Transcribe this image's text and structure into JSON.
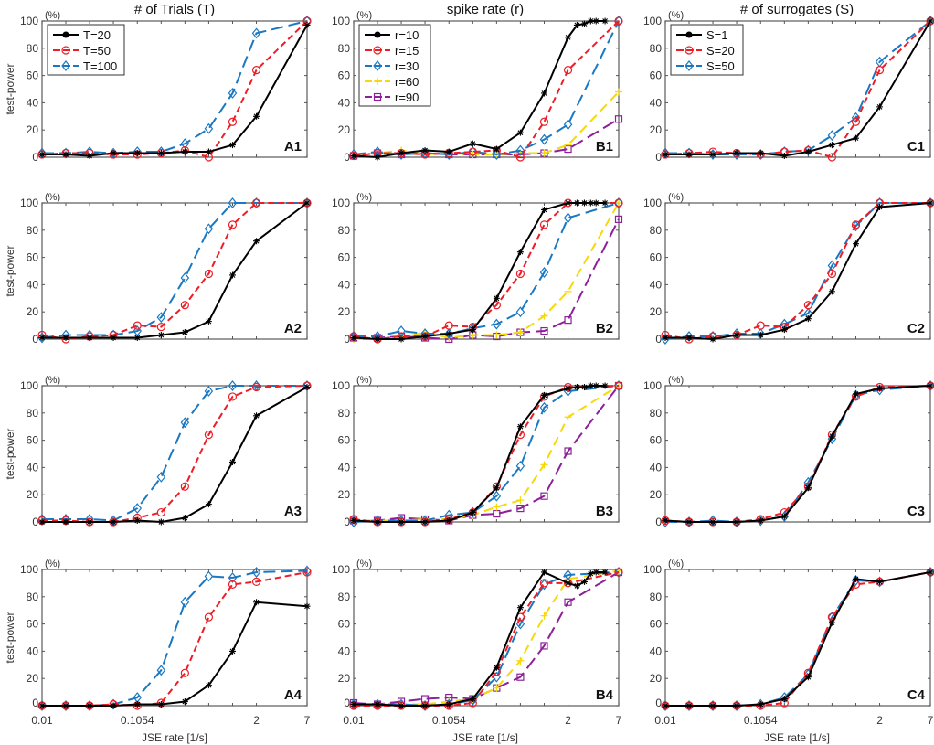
{
  "chart_data": {
    "type": "line",
    "column_titles": [
      "# of Trials (T)",
      "spike rate (r)",
      "# of surrogates (S)"
    ],
    "ylabel": "test-power",
    "yunit": "(%)",
    "xlabel": "JSE rate [1/s]",
    "xscale": "log",
    "xlim": [
      0.01,
      7
    ],
    "ylim": [
      0,
      100
    ],
    "yticks": [
      0,
      20,
      40,
      60,
      80,
      100
    ],
    "xtick_labels": [
      {
        "value": 0.01,
        "label": "0.01"
      },
      {
        "value": 0.1054,
        "label": "0.1054"
      },
      {
        "value": 2,
        "label": "2"
      },
      {
        "value": 7,
        "label": "7"
      }
    ],
    "x": {
      "base": [
        0.01,
        0.018,
        0.0324,
        0.0583,
        0.1054,
        0.19,
        0.342,
        0.616,
        1.11,
        2,
        7
      ],
      "fine": [
        0.01,
        0.018,
        0.0324,
        0.0583,
        0.1054,
        0.19,
        0.342,
        0.616,
        1.11,
        2,
        2.5,
        3,
        3.5,
        4,
        5
      ]
    },
    "styles": {
      "T=20": {
        "color": "#000000",
        "marker": "star",
        "dash": ""
      },
      "T=50": {
        "color": "#ee1c25",
        "marker": "circle",
        "dash": "7,4"
      },
      "T=100": {
        "color": "#1a78c2",
        "marker": "diamond",
        "dash": "13,6"
      },
      "r=10": {
        "color": "#000000",
        "marker": "star",
        "dash": ""
      },
      "r=15": {
        "color": "#ee1c25",
        "marker": "circle",
        "dash": "7,4"
      },
      "r=30": {
        "color": "#1a78c2",
        "marker": "diamond",
        "dash": "13,6"
      },
      "r=60": {
        "color": "#f5d90a",
        "marker": "plus",
        "dash": "10,6"
      },
      "r=90": {
        "color": "#8e1f9a",
        "marker": "square",
        "dash": "14,6"
      },
      "S=1": {
        "color": "#000000",
        "marker": "star",
        "dash": ""
      },
      "S=20": {
        "color": "#ee1c25",
        "marker": "circle",
        "dash": "7,4"
      },
      "S=50": {
        "color": "#1a78c2",
        "marker": "diamond",
        "dash": "13,6"
      }
    },
    "panels": [
      {
        "label": "A1",
        "legend": true,
        "series": [
          {
            "name": "T=20",
            "x": "base",
            "values": [
              2,
              2,
              1,
              3,
              3,
              3,
              4,
              4,
              9,
              30,
              97
            ]
          },
          {
            "name": "T=50",
            "x": "base",
            "values": [
              2,
              3,
              3,
              2,
              2,
              3,
              5,
              0,
              26,
              64,
              100
            ]
          },
          {
            "name": "T=100",
            "x": "base",
            "values": [
              3,
              3,
              4,
              3,
              4,
              4,
              10,
              21,
              47,
              91,
              100
            ]
          }
        ]
      },
      {
        "label": "B1",
        "legend": true,
        "series": [
          {
            "name": "r=10",
            "x": "fine",
            "values": [
              1,
              0,
              3,
              5,
              4,
              10,
              6,
              18,
              47,
              88,
              97,
              98,
              100,
              100,
              100
            ]
          },
          {
            "name": "r=15",
            "x": "base",
            "values": [
              1,
              3,
              3,
              2,
              3,
              4,
              5,
              0,
              26,
              64,
              100
            ]
          },
          {
            "name": "r=30",
            "x": "base",
            "values": [
              2,
              4,
              2,
              3,
              2,
              4,
              2,
              5,
              13,
              24,
              100
            ]
          },
          {
            "name": "r=60",
            "x": "base",
            "values": [
              2,
              3,
              5,
              2,
              3,
              2,
              2,
              3,
              3,
              9,
              48
            ]
          },
          {
            "name": "r=90",
            "x": "base",
            "values": [
              1,
              3,
              2,
              3,
              2,
              2,
              2,
              2,
              3,
              6,
              28
            ]
          }
        ]
      },
      {
        "label": "C1",
        "legend": true,
        "series": [
          {
            "name": "S=1",
            "x": "base",
            "values": [
              2,
              2,
              2,
              3,
              3,
              1,
              4,
              9,
              14,
              37,
              100
            ]
          },
          {
            "name": "S=20",
            "x": "base",
            "values": [
              2,
              3,
              4,
              3,
              2,
              4,
              5,
              0,
              26,
              64,
              100
            ]
          },
          {
            "name": "S=50",
            "x": "base",
            "values": [
              3,
              3,
              2,
              2,
              2,
              4,
              5,
              16,
              29,
              70,
              100
            ]
          }
        ]
      },
      {
        "label": "A2",
        "legend": false,
        "series": [
          {
            "name": "T=20",
            "x": "base",
            "values": [
              1,
              1,
              1,
              1,
              1,
              3,
              5,
              13,
              47,
              72,
              100
            ]
          },
          {
            "name": "T=50",
            "x": "base",
            "values": [
              3,
              0,
              2,
              3,
              10,
              9,
              25,
              48,
              84,
              100,
              100
            ]
          },
          {
            "name": "T=100",
            "x": "base",
            "values": [
              1,
              3,
              3,
              3,
              6,
              16,
              45,
              81,
              100,
              100,
              100
            ]
          }
        ]
      },
      {
        "label": "B2",
        "legend": false,
        "series": [
          {
            "name": "r=10",
            "x": "fine",
            "values": [
              1,
              0,
              0,
              2,
              4,
              7,
              30,
              64,
              95,
              100,
              100,
              100,
              100,
              100,
              100
            ]
          },
          {
            "name": "r=15",
            "x": "base",
            "values": [
              2,
              0,
              2,
              2,
              10,
              9,
              25,
              48,
              84,
              100,
              100
            ]
          },
          {
            "name": "r=30",
            "x": "base",
            "values": [
              2,
              2,
              6,
              4,
              4,
              8,
              11,
              20,
              49,
              89,
              100
            ]
          },
          {
            "name": "r=60",
            "x": "base",
            "values": [
              0,
              0,
              1,
              5,
              1,
              3,
              3,
              5,
              17,
              35,
              100
            ]
          },
          {
            "name": "r=90",
            "x": "base",
            "values": [
              1,
              1,
              2,
              1,
              0,
              3,
              2,
              5,
              6,
              14,
              88
            ]
          }
        ]
      },
      {
        "label": "C2",
        "legend": false,
        "series": [
          {
            "name": "S=1",
            "x": "base",
            "values": [
              1,
              1,
              0,
              3,
              3,
              7,
              15,
              35,
              70,
              97,
              100
            ]
          },
          {
            "name": "S=20",
            "x": "base",
            "values": [
              3,
              0,
              2,
              3,
              10,
              9,
              25,
              48,
              84,
              100,
              100
            ]
          },
          {
            "name": "S=50",
            "x": "base",
            "values": [
              0,
              2,
              2,
              4,
              4,
              11,
              19,
              54,
              83,
              100,
              100
            ]
          }
        ]
      },
      {
        "label": "A3",
        "legend": false,
        "series": [
          {
            "name": "T=20",
            "x": "base",
            "values": [
              0,
              0,
              0,
              0,
              1,
              0,
              3,
              13,
              44,
              78,
              99
            ]
          },
          {
            "name": "T=50",
            "x": "base",
            "values": [
              1,
              1,
              0,
              0,
              3,
              7,
              26,
              64,
              92,
              99,
              100
            ]
          },
          {
            "name": "T=100",
            "x": "base",
            "values": [
              2,
              2,
              2,
              1,
              10,
              33,
              73,
              96,
              100,
              100,
              100
            ]
          }
        ]
      },
      {
        "label": "B3",
        "legend": false,
        "series": [
          {
            "name": "r=10",
            "x": "fine",
            "values": [
              1,
              0,
              0,
              0,
              1,
              7,
              25,
              70,
              93,
              98,
              99,
              99,
              100,
              100,
              100
            ]
          },
          {
            "name": "r=15",
            "x": "base",
            "values": [
              2,
              0,
              0,
              0,
              2,
              7,
              26,
              64,
              92,
              99,
              100
            ]
          },
          {
            "name": "r=30",
            "x": "base",
            "values": [
              0,
              1,
              1,
              1,
              5,
              7,
              19,
              41,
              84,
              96,
              100
            ]
          },
          {
            "name": "r=60",
            "x": "base",
            "values": [
              1,
              1,
              1,
              2,
              2,
              5,
              11,
              16,
              42,
              77,
              100
            ]
          },
          {
            "name": "r=90",
            "x": "base",
            "values": [
              1,
              1,
              3,
              2,
              1,
              5,
              6,
              10,
              19,
              52,
              100
            ]
          }
        ]
      },
      {
        "label": "C3",
        "legend": false,
        "series": [
          {
            "name": "S=1",
            "x": "base",
            "values": [
              1,
              0,
              0,
              0,
              1,
              4,
              25,
              63,
              94,
              98,
              100
            ]
          },
          {
            "name": "S=20",
            "x": "base",
            "values": [
              1,
              0,
              0,
              0,
              2,
              7,
              26,
              64,
              92,
              99,
              100
            ]
          },
          {
            "name": "S=50",
            "x": "base",
            "values": [
              0,
              0,
              1,
              0,
              1,
              4,
              29,
              61,
              93,
              97,
              100
            ]
          }
        ]
      },
      {
        "label": "A4",
        "legend": false,
        "series": [
          {
            "name": "T=20",
            "x": "base",
            "values": [
              0,
              0,
              0,
              0,
              1,
              1,
              3,
              15,
              40,
              76,
              73
            ]
          },
          {
            "name": "T=50",
            "x": "base",
            "values": [
              0,
              0,
              0,
              1,
              0,
              2,
              24,
              65,
              89,
              91,
              98
            ]
          },
          {
            "name": "T=100",
            "x": "base",
            "values": [
              0,
              0,
              0,
              1,
              6,
              26,
              76,
              95,
              94,
              98,
              99
            ]
          }
        ]
      },
      {
        "label": "B4",
        "legend": false,
        "series": [
          {
            "name": "r=10",
            "x": "fine",
            "values": [
              1,
              1,
              0,
              0,
              1,
              5,
              28,
              72,
              98,
              90,
              88,
              91,
              97,
              98,
              98
            ]
          },
          {
            "name": "r=15",
            "x": "base",
            "values": [
              0,
              0,
              0,
              0,
              0,
              2,
              25,
              65,
              90,
              90,
              98
            ]
          },
          {
            "name": "r=30",
            "x": "base",
            "values": [
              1,
              1,
              1,
              0,
              1,
              4,
              21,
              60,
              89,
              96,
              98
            ]
          },
          {
            "name": "r=60",
            "x": "base",
            "values": [
              1,
              1,
              1,
              1,
              3,
              5,
              13,
              33,
              66,
              93,
              99
            ]
          },
          {
            "name": "r=90",
            "x": "base",
            "values": [
              2,
              1,
              3,
              5,
              6,
              5,
              13,
              21,
              44,
              76,
              98
            ]
          }
        ]
      },
      {
        "label": "C4",
        "legend": false,
        "series": [
          {
            "name": "S=1",
            "x": "base",
            "values": [
              0,
              0,
              0,
              0,
              1,
              5,
              21,
              61,
              93,
              91,
              98
            ]
          },
          {
            "name": "S=20",
            "x": "base",
            "values": [
              0,
              0,
              0,
              0,
              0,
              2,
              24,
              65,
              89,
              91,
              98
            ]
          },
          {
            "name": "S=50",
            "x": "base",
            "values": [
              0,
              0,
              0,
              0,
              1,
              6,
              23,
              65,
              92,
              91,
              98
            ]
          }
        ]
      }
    ]
  }
}
